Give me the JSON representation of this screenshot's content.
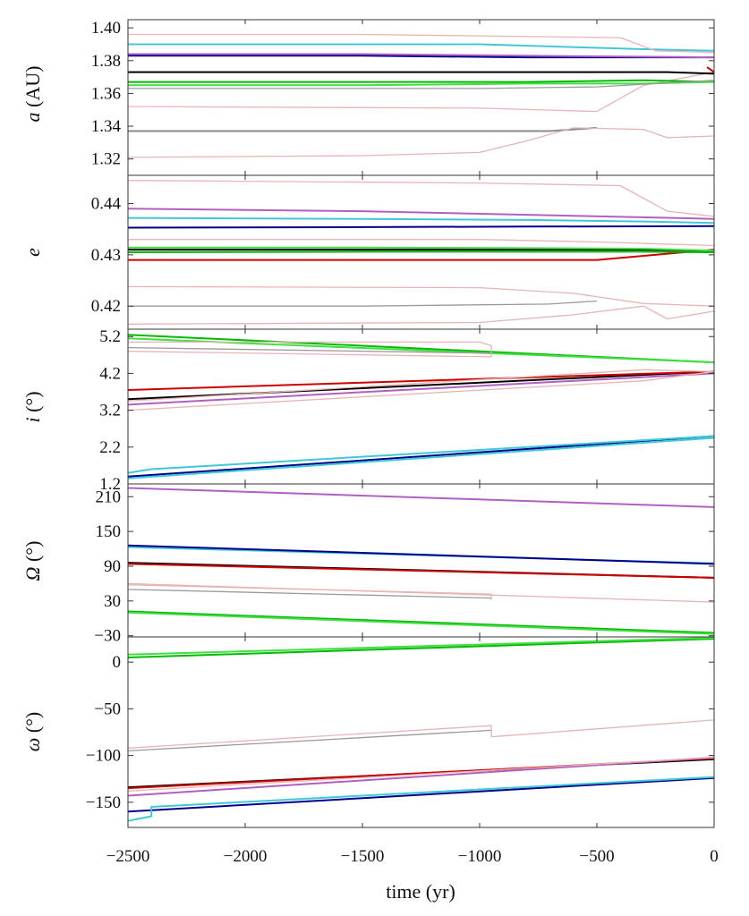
{
  "chart_data": [
    {
      "type": "line",
      "ylabel_var": "a",
      "ylabel_rest": " (AU)",
      "ylim": [
        1.31,
        1.405
      ],
      "yticks": [
        1.32,
        1.34,
        1.36,
        1.38,
        1.4
      ],
      "ytick_labels": [
        "1.32",
        "1.34",
        "1.36",
        "1.38",
        "1.40"
      ],
      "series": [
        {
          "color": "#8a8a8a",
          "x": [
            -2500,
            -1500,
            -700,
            -500
          ],
          "y": [
            1.337,
            1.337,
            1.337,
            1.339
          ]
        },
        {
          "color": "#e8b4b4",
          "x": [
            -2500,
            -1500,
            -1000,
            -800,
            -600,
            -300,
            -200,
            0
          ],
          "y": [
            1.321,
            1.322,
            1.324,
            1.331,
            1.339,
            1.338,
            1.333,
            1.334
          ]
        },
        {
          "color": "#e8b4b4",
          "x": [
            -2500,
            -1000,
            -500,
            -300,
            0
          ],
          "y": [
            1.352,
            1.351,
            1.349,
            1.365,
            1.373
          ]
        },
        {
          "color": "#00bb00",
          "x": [
            -2500,
            -1500,
            -800,
            -300,
            0
          ],
          "y": [
            1.367,
            1.367,
            1.367,
            1.368,
            1.367
          ]
        },
        {
          "color": "#44dd44",
          "x": [
            -2500,
            -1500,
            -800,
            -300,
            0
          ],
          "y": [
            1.365,
            1.365,
            1.366,
            1.366,
            1.367
          ]
        },
        {
          "color": "#9a9a9a",
          "x": [
            -2500,
            -1000,
            -500,
            0
          ],
          "y": [
            1.363,
            1.363,
            1.364,
            1.368
          ]
        },
        {
          "color": "#000000",
          "x": [
            -2500,
            -1500,
            -800,
            -200,
            0
          ],
          "y": [
            1.373,
            1.373,
            1.373,
            1.373,
            1.372
          ]
        },
        {
          "color": "#00008b",
          "x": [
            -2500,
            -1500,
            -800,
            0
          ],
          "y": [
            1.383,
            1.383,
            1.382,
            1.382
          ]
        },
        {
          "color": "#b060c0",
          "x": [
            -2500,
            -1500,
            -800,
            0
          ],
          "y": [
            1.384,
            1.384,
            1.383,
            1.382
          ]
        },
        {
          "color": "#40c8d8",
          "x": [
            -2500,
            -1000,
            -300,
            0
          ],
          "y": [
            1.39,
            1.39,
            1.387,
            1.386
          ]
        },
        {
          "color": "#e8b4b4",
          "x": [
            -2500,
            -1500,
            -400,
            -250,
            0
          ],
          "y": [
            1.396,
            1.396,
            1.394,
            1.386,
            1.385
          ]
        },
        {
          "color": "#cc0000",
          "x": [
            -30,
            0
          ],
          "y": [
            1.376,
            1.373
          ]
        }
      ]
    },
    {
      "type": "line",
      "ylabel_var": "e",
      "ylabel_rest": "",
      "ylim": [
        0.4155,
        0.4455
      ],
      "yticks": [
        0.42,
        0.43,
        0.44
      ],
      "ytick_labels": [
        "0.42",
        "0.43",
        "0.44"
      ],
      "series": [
        {
          "color": "#e8b4b4",
          "x": [
            -2500,
            -1000,
            -600,
            -300,
            -200,
            0
          ],
          "y": [
            0.4165,
            0.4168,
            0.4183,
            0.42,
            0.4175,
            0.419
          ]
        },
        {
          "color": "#9a9a9a",
          "x": [
            -2500,
            -1500,
            -700,
            -500
          ],
          "y": [
            0.42,
            0.42,
            0.4204,
            0.421
          ]
        },
        {
          "color": "#e8b4b4",
          "x": [
            -2500,
            -1000,
            -600,
            -300,
            0
          ],
          "y": [
            0.4238,
            0.4236,
            0.4225,
            0.4205,
            0.42
          ]
        },
        {
          "color": "#cc0000",
          "x": [
            -2500,
            -1000,
            -500,
            0
          ],
          "y": [
            0.429,
            0.429,
            0.429,
            0.431
          ]
        },
        {
          "color": "#00bb00",
          "x": [
            -2500,
            -1500,
            -800,
            -300,
            0
          ],
          "y": [
            0.4305,
            0.4306,
            0.4306,
            0.4306,
            0.4305
          ]
        },
        {
          "color": "#000000",
          "x": [
            -2500,
            -1500,
            -800,
            -300,
            0
          ],
          "y": [
            0.431,
            0.431,
            0.431,
            0.431,
            0.4308
          ]
        },
        {
          "color": "#44dd44",
          "x": [
            -2500,
            -1500,
            -800,
            -300,
            0
          ],
          "y": [
            0.4314,
            0.4314,
            0.4313,
            0.4312,
            0.4308
          ]
        },
        {
          "color": "#e8b4b4",
          "x": [
            -2500,
            -1000,
            -500,
            0
          ],
          "y": [
            0.433,
            0.433,
            0.4325,
            0.4318
          ]
        },
        {
          "color": "#00008b",
          "x": [
            -2500,
            -1500,
            -800,
            0
          ],
          "y": [
            0.4353,
            0.4354,
            0.4355,
            0.4356
          ]
        },
        {
          "color": "#40c8d8",
          "x": [
            -2500,
            -1500,
            -800,
            -300,
            0
          ],
          "y": [
            0.4372,
            0.437,
            0.4368,
            0.4365,
            0.4362
          ]
        },
        {
          "color": "#b060c0",
          "x": [
            -2500,
            -1500,
            -800,
            0
          ],
          "y": [
            0.439,
            0.4385,
            0.4378,
            0.437
          ]
        },
        {
          "color": "#e8b4b4",
          "x": [
            -2500,
            -1000,
            -400,
            -200,
            0
          ],
          "y": [
            0.4445,
            0.444,
            0.4435,
            0.4385,
            0.4375
          ]
        }
      ]
    },
    {
      "type": "line",
      "ylabel_var": "i",
      "ylabel_rest": " (°)",
      "ylim": [
        1.2,
        5.4
      ],
      "yticks": [
        1.2,
        2.2,
        3.2,
        4.2,
        5.2
      ],
      "ytick_labels": [
        "1.2",
        "2.2",
        "3.2",
        "4.2",
        "5.2"
      ],
      "series": [
        {
          "color": "#00008b",
          "x": [
            -2500,
            0
          ],
          "y": [
            1.4,
            2.5
          ]
        },
        {
          "color": "#40c8d8",
          "x": [
            -2500,
            -2400,
            0
          ],
          "y": [
            1.5,
            1.6,
            2.5
          ]
        },
        {
          "color": "#40c8d8",
          "x": [
            -2500,
            0
          ],
          "y": [
            1.35,
            2.45
          ]
        },
        {
          "color": "#000000",
          "x": [
            -2500,
            0
          ],
          "y": [
            3.5,
            4.25
          ]
        },
        {
          "color": "#cc0000",
          "x": [
            -2500,
            0
          ],
          "y": [
            3.75,
            4.25
          ]
        },
        {
          "color": "#e8b4b4",
          "x": [
            -2500,
            -300,
            0
          ],
          "y": [
            3.45,
            4.3,
            4.25
          ]
        },
        {
          "color": "#b060c0",
          "x": [
            -2500,
            0
          ],
          "y": [
            3.35,
            4.2
          ]
        },
        {
          "color": "#e8b4b4",
          "x": [
            -2500,
            -300,
            0
          ],
          "y": [
            3.2,
            4.0,
            4.25
          ]
        },
        {
          "color": "#00bb00",
          "x": [
            -2500,
            0
          ],
          "y": [
            5.25,
            4.5
          ]
        },
        {
          "color": "#44dd44",
          "x": [
            -2500,
            0
          ],
          "y": [
            5.15,
            4.5
          ]
        },
        {
          "color": "#9a9a9a",
          "x": [
            -2500,
            -950
          ],
          "y": [
            4.9,
            4.75
          ]
        },
        {
          "color": "#e8b4b4",
          "x": [
            -2500,
            -1000,
            -950,
            -950,
            -2500
          ],
          "y": [
            5.05,
            5.05,
            4.95,
            4.65,
            4.8
          ]
        }
      ]
    },
    {
      "type": "line",
      "ylabel_var": "Ω",
      "ylabel_rest": " (°)",
      "ylim": [
        -32,
        232
      ],
      "yticks": [
        -30,
        30,
        90,
        150,
        210
      ],
      "ytick_labels": [
        "−30",
        "30",
        "90",
        "150",
        "210"
      ],
      "series": [
        {
          "color": "#b060c0",
          "x": [
            -2500,
            0
          ],
          "y": [
            225,
            192
          ]
        },
        {
          "color": "#40c8d8",
          "x": [
            -2500,
            0
          ],
          "y": [
            123,
            95
          ]
        },
        {
          "color": "#00008b",
          "x": [
            -2500,
            0
          ],
          "y": [
            126,
            94
          ]
        },
        {
          "color": "#000000",
          "x": [
            -2500,
            0
          ],
          "y": [
            96,
            70
          ]
        },
        {
          "color": "#cc0000",
          "x": [
            -2500,
            0
          ],
          "y": [
            94,
            70
          ]
        },
        {
          "color": "#e8b4b4",
          "x": [
            -2500,
            0
          ],
          "y": [
            60,
            28
          ]
        },
        {
          "color": "#9a9a9a",
          "x": [
            -2500,
            -950
          ],
          "y": [
            50,
            35
          ]
        },
        {
          "color": "#e8b4b4",
          "x": [
            -2500,
            -950,
            -950
          ],
          "y": [
            58,
            42,
            32
          ]
        },
        {
          "color": "#00bb00",
          "x": [
            -2500,
            0
          ],
          "y": [
            12,
            -25
          ]
        },
        {
          "color": "#44dd44",
          "x": [
            -2500,
            0
          ],
          "y": [
            10,
            -27
          ]
        }
      ]
    },
    {
      "type": "line",
      "ylabel_var": "ω",
      "ylabel_rest": " (°)",
      "ylim": [
        -177,
        27
      ],
      "yticks": [
        -150,
        -100,
        -50,
        0
      ],
      "ytick_labels": [
        "−150",
        "−100",
        "−50",
        "0"
      ],
      "series": [
        {
          "color": "#00bb00",
          "x": [
            -2500,
            0
          ],
          "y": [
            5,
            25
          ]
        },
        {
          "color": "#44dd44",
          "x": [
            -2500,
            0
          ],
          "y": [
            8,
            26
          ]
        },
        {
          "color": "#9a9a9a",
          "x": [
            -2500,
            -950
          ],
          "y": [
            -95,
            -73
          ]
        },
        {
          "color": "#e8b4b4",
          "x": [
            -2500,
            -950,
            -950
          ],
          "y": [
            -92,
            -68,
            -80
          ]
        },
        {
          "color": "#e8b4b4",
          "x": [
            -950,
            0
          ],
          "y": [
            -80,
            -62
          ]
        },
        {
          "color": "#000000",
          "x": [
            -2500,
            0
          ],
          "y": [
            -134,
            -104
          ]
        },
        {
          "color": "#cc0000",
          "x": [
            -2500,
            0
          ],
          "y": [
            -135,
            -103
          ]
        },
        {
          "color": "#b060c0",
          "x": [
            -2500,
            0
          ],
          "y": [
            -143,
            -102
          ]
        },
        {
          "color": "#e8b4b4",
          "x": [
            -2500,
            0
          ],
          "y": [
            -138,
            -102
          ]
        },
        {
          "color": "#00008b",
          "x": [
            -2500,
            0
          ],
          "y": [
            -160,
            -124
          ]
        },
        {
          "color": "#40c8d8",
          "x": [
            -2500,
            -2400,
            -2400,
            0
          ],
          "y": [
            -170,
            -165,
            -155,
            -123
          ]
        }
      ]
    }
  ],
  "xaxis": {
    "label": "time (yr)",
    "xlim": [
      -2500,
      0
    ],
    "ticks": [
      -2500,
      -2000,
      -1500,
      -1000,
      -500,
      0
    ],
    "tick_labels": [
      "−2500",
      "−2000",
      "−1500",
      "−1000",
      "−500",
      "0"
    ]
  }
}
